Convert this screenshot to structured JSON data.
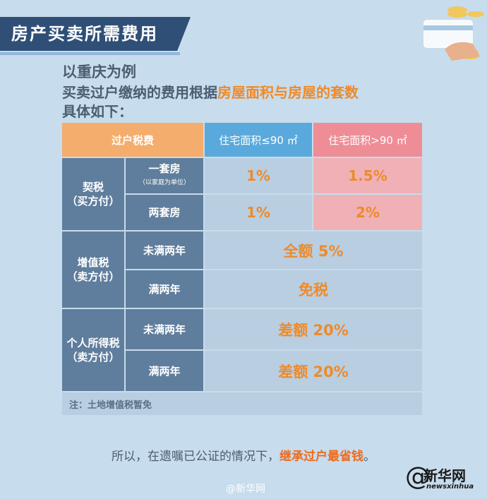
{
  "title": "房产买卖所需费用",
  "subtitle": "以重庆为例",
  "intro": {
    "prefix": "买卖过户缴纳的费用根据",
    "highlight": "房屋面积与房屋的套数",
    "suffix": "具体如下："
  },
  "table": {
    "header": {
      "corner": "过户税费",
      "col1": "住宅面积≤90 ㎡",
      "col2": "住宅面积>90 ㎡"
    },
    "deed_tax": {
      "label_line1": "契税",
      "label_line2": "（买方付）",
      "rows": [
        {
          "label": "一套房",
          "sublabel": "（以家庭为单位）",
          "v1": "1%",
          "v2": "1.5%"
        },
        {
          "label": "两套房",
          "v1": "1%",
          "v2": "2%"
        }
      ]
    },
    "vat": {
      "label_line1": "增值税",
      "label_line2": "（卖方付）",
      "rows": [
        {
          "label": "未满两年",
          "value": "全额 5%"
        },
        {
          "label": "满两年",
          "value": "免税"
        }
      ]
    },
    "income_tax": {
      "label_line1": "个人所得税",
      "label_line2": "（卖方付）",
      "rows": [
        {
          "label": "未满两年",
          "value": "差额 20%"
        },
        {
          "label": "满两年",
          "value": "差额 20%"
        }
      ]
    },
    "note": "注：土地增值税暂免"
  },
  "conclusion": {
    "prefix": "所以，在遗嘱已公证的情况下，",
    "highlight": "继承过户最省钱",
    "suffix": "。"
  },
  "watermark": "@新华网",
  "logo": {
    "at": "@",
    "name": "新华网",
    "en": "newsxinhua"
  },
  "colors": {
    "banner": "#2f4f76",
    "accent": "#ee8a2a",
    "dark_cell": "#5f7e9d",
    "light_cell": "#b9cee0",
    "header_blue": "#5aa9dc",
    "header_pink": "#ef8d97"
  }
}
